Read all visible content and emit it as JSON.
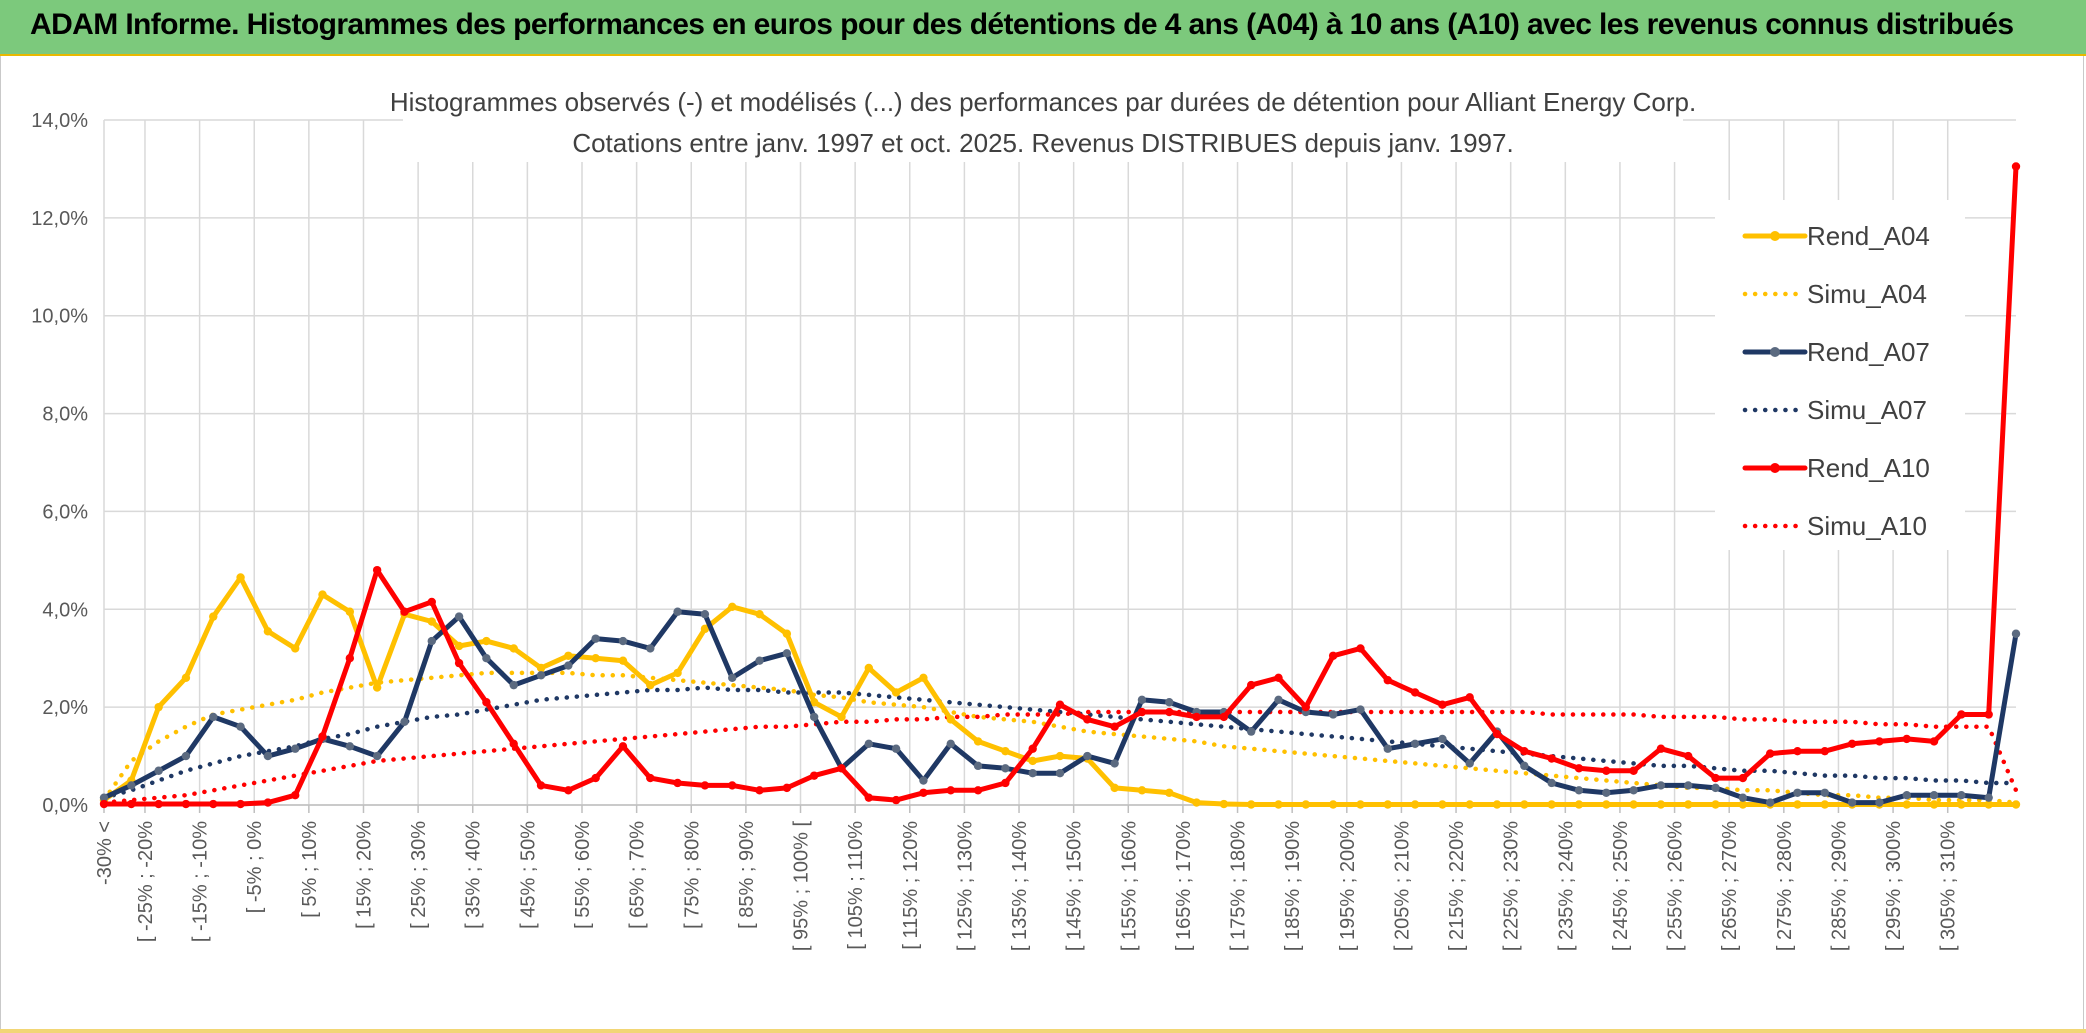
{
  "header": {
    "title": "ADAM Informe. Histogrammes des performances en euros pour des détentions de 4 ans (A04) à 10 ans (A10) avec les revenus connus distribués"
  },
  "chart_data": {
    "type": "line",
    "title": "Histogrammes observés (-) et modélisés (...) des performances par durées de détention pour Alliant Energy Corp.",
    "subtitle": "Cotations entre janv. 1997 et oct. 2025. Revenus DISTRIBUES depuis janv. 1997.",
    "xlabel": "",
    "ylabel": "",
    "ylim": [
      0,
      14
    ],
    "yticks": [
      "0,0%",
      "2,0%",
      "4,0%",
      "6,0%",
      "8,0%",
      "10,0%",
      "12,0%",
      "14,0%"
    ],
    "grid": true,
    "legend_position": "right",
    "x_labels": [
      "-30% <",
      "[ -25% ; -20%",
      "[ -15% ; -10%",
      "[ -5% ; 0%",
      "[ 5% ; 10%",
      "[ 15% ; 20%",
      "[ 25% ; 30%",
      "[ 35% ; 40%",
      "[ 45% ; 50%",
      "[ 55% ; 60%",
      "[ 65% ; 70%",
      "[ 75% ; 80%",
      "[ 85% ; 90%",
      "[ 95% ; 100% [",
      "[ 105% ; 110%",
      "[ 115% ; 120%",
      "[ 125% ; 130%",
      "[ 135% ; 140%",
      "[ 145% ; 150%",
      "[ 155% ; 160%",
      "[ 165% ; 170%",
      "[ 175% ; 180%",
      "[ 185% ; 190%",
      "[ 195% ; 200%",
      "[ 205% ; 210%",
      "[ 215% ; 220%",
      "[ 225% ; 230%",
      "[ 235% ; 240%",
      "[ 245% ; 250%",
      "[ 255% ; 260%",
      "[ 265% ; 270%",
      "[ 275% ; 280%",
      "[ 285% ; 290%",
      "[ 295% ; 300%",
      "[ 305% ; 310%"
    ],
    "series": [
      {
        "name": "Rend_A04",
        "style": "solid",
        "color": "#FFC000",
        "values": [
          0.1,
          0.5,
          2.0,
          2.6,
          3.85,
          4.65,
          3.55,
          3.2,
          4.3,
          3.95,
          2.4,
          3.9,
          3.75,
          3.25,
          3.35,
          3.2,
          2.8,
          3.05,
          3.0,
          2.95,
          2.45,
          2.7,
          3.6,
          4.05,
          3.9,
          3.5,
          2.1,
          1.8,
          2.8,
          2.3,
          2.6,
          1.75,
          1.3,
          1.1,
          0.9,
          1.0,
          0.95,
          0.35,
          0.3,
          0.25,
          0.05,
          0.02,
          0.01,
          0.01,
          0.01,
          0.01,
          0.01,
          0.01,
          0.01,
          0.01,
          0.01,
          0.01,
          0.01,
          0.01,
          0.01,
          0.01,
          0.01,
          0.01,
          0.01,
          0.01,
          0.01,
          0.01,
          0.01,
          0.01,
          0.01,
          0.01,
          0.01,
          0.01,
          0.01,
          0.01,
          0.01
        ]
      },
      {
        "name": "Simu_A04",
        "style": "dotted",
        "color": "#FFC000",
        "values": [
          0.1,
          0.9,
          1.3,
          1.6,
          1.85,
          1.95,
          2.05,
          2.15,
          2.3,
          2.4,
          2.5,
          2.55,
          2.6,
          2.65,
          2.7,
          2.7,
          2.7,
          2.7,
          2.65,
          2.65,
          2.6,
          2.55,
          2.5,
          2.45,
          2.4,
          2.35,
          2.25,
          2.2,
          2.1,
          2.05,
          2.0,
          1.9,
          1.8,
          1.75,
          1.7,
          1.6,
          1.5,
          1.45,
          1.4,
          1.35,
          1.3,
          1.2,
          1.15,
          1.1,
          1.05,
          1.0,
          0.95,
          0.9,
          0.85,
          0.8,
          0.75,
          0.7,
          0.65,
          0.6,
          0.55,
          0.5,
          0.45,
          0.4,
          0.35,
          0.35,
          0.3,
          0.3,
          0.25,
          0.2,
          0.2,
          0.15,
          0.15,
          0.1,
          0.1,
          0.1,
          0.05
        ]
      },
      {
        "name": "Rend_A07",
        "style": "solid",
        "color": "#1F3864",
        "values": [
          0.15,
          0.4,
          0.7,
          1.0,
          1.8,
          1.6,
          1.0,
          1.15,
          1.35,
          1.2,
          1.0,
          1.7,
          3.35,
          3.85,
          3.0,
          2.45,
          2.65,
          2.85,
          3.4,
          3.35,
          3.2,
          3.95,
          3.9,
          2.6,
          2.95,
          3.1,
          1.8,
          0.75,
          1.25,
          1.15,
          0.5,
          1.25,
          0.8,
          0.75,
          0.65,
          0.65,
          1.0,
          0.85,
          2.15,
          2.1,
          1.9,
          1.9,
          1.5,
          2.15,
          1.9,
          1.85,
          1.95,
          1.15,
          1.25,
          1.35,
          0.85,
          1.5,
          0.8,
          0.45,
          0.3,
          0.25,
          0.3,
          0.4,
          0.4,
          0.35,
          0.15,
          0.05,
          0.25,
          0.25,
          0.05,
          0.05,
          0.2,
          0.2,
          0.2,
          0.15,
          3.5
        ]
      },
      {
        "name": "Simu_A07",
        "style": "dotted",
        "color": "#1F3864",
        "values": [
          0.15,
          0.3,
          0.5,
          0.7,
          0.85,
          1.0,
          1.1,
          1.2,
          1.35,
          1.45,
          1.6,
          1.7,
          1.8,
          1.85,
          1.95,
          2.05,
          2.15,
          2.2,
          2.25,
          2.3,
          2.35,
          2.35,
          2.4,
          2.35,
          2.35,
          2.3,
          2.3,
          2.3,
          2.25,
          2.2,
          2.15,
          2.1,
          2.05,
          2.0,
          1.95,
          1.9,
          1.85,
          1.8,
          1.75,
          1.7,
          1.65,
          1.6,
          1.55,
          1.5,
          1.45,
          1.4,
          1.35,
          1.3,
          1.25,
          1.2,
          1.15,
          1.1,
          1.05,
          1.0,
          0.95,
          0.9,
          0.85,
          0.8,
          0.8,
          0.75,
          0.7,
          0.7,
          0.65,
          0.6,
          0.6,
          0.55,
          0.55,
          0.5,
          0.5,
          0.45,
          0.45
        ]
      },
      {
        "name": "Rend_A10",
        "style": "solid",
        "color": "#FF0000",
        "values": [
          0.02,
          0.02,
          0.02,
          0.02,
          0.02,
          0.02,
          0.05,
          0.2,
          1.4,
          3.0,
          4.8,
          3.95,
          4.15,
          2.9,
          2.1,
          1.25,
          0.4,
          0.3,
          0.55,
          1.2,
          0.55,
          0.45,
          0.4,
          0.4,
          0.3,
          0.35,
          0.6,
          0.75,
          0.15,
          0.1,
          0.25,
          0.3,
          0.3,
          0.45,
          1.15,
          2.05,
          1.75,
          1.6,
          1.9,
          1.9,
          1.8,
          1.8,
          2.45,
          2.6,
          2.0,
          3.05,
          3.2,
          2.55,
          2.3,
          2.05,
          2.2,
          1.45,
          1.1,
          0.95,
          0.75,
          0.7,
          0.7,
          1.15,
          1.0,
          0.55,
          0.55,
          1.05,
          1.1,
          1.1,
          1.25,
          1.3,
          1.35,
          1.3,
          1.85,
          1.85,
          13.05
        ]
      },
      {
        "name": "Simu_A10",
        "style": "dotted",
        "color": "#FF0000",
        "values": [
          0.05,
          0.1,
          0.15,
          0.2,
          0.3,
          0.4,
          0.5,
          0.6,
          0.7,
          0.8,
          0.9,
          0.95,
          1.0,
          1.05,
          1.1,
          1.15,
          1.2,
          1.25,
          1.3,
          1.35,
          1.4,
          1.45,
          1.5,
          1.55,
          1.6,
          1.6,
          1.65,
          1.7,
          1.7,
          1.75,
          1.75,
          1.8,
          1.8,
          1.85,
          1.85,
          1.85,
          1.9,
          1.9,
          1.9,
          1.9,
          1.9,
          1.9,
          1.9,
          1.9,
          1.9,
          1.9,
          1.9,
          1.9,
          1.9,
          1.9,
          1.9,
          1.9,
          1.9,
          1.85,
          1.85,
          1.85,
          1.85,
          1.8,
          1.8,
          1.8,
          1.75,
          1.75,
          1.7,
          1.7,
          1.7,
          1.65,
          1.65,
          1.6,
          1.6,
          1.6,
          0.3
        ]
      }
    ]
  }
}
